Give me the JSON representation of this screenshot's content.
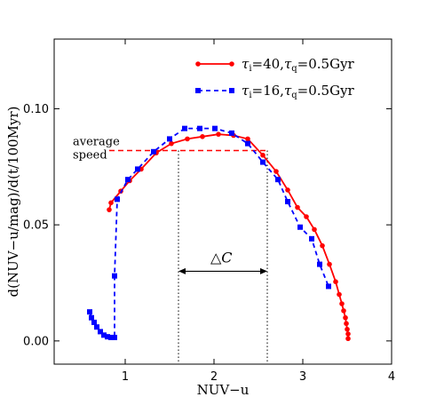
{
  "chart_data": {
    "type": "line",
    "xlabel": "NUV−u",
    "ylabel": "d(NUV−u/mag)/d(t/100Myr)",
    "xlim": [
      0.2,
      4.0
    ],
    "ylim": [
      -0.01,
      0.13
    ],
    "x_ticks": [
      {
        "value": 1,
        "label": "1"
      },
      {
        "value": 2,
        "label": "2"
      },
      {
        "value": 3,
        "label": "3"
      },
      {
        "value": 4,
        "label": "4"
      }
    ],
    "y_ticks": [
      {
        "value": 0.0,
        "label": "0.00"
      },
      {
        "value": 0.05,
        "label": "0.05"
      },
      {
        "value": 0.1,
        "label": "0.10"
      }
    ],
    "legend_position": "top-right",
    "series": [
      {
        "name": "τi=40,τq=0.5Gyr",
        "label_parts": {
          "tau_i": "40",
          "tau_q": "0.5Gyr"
        },
        "color": "#ff0000",
        "line_style": "solid",
        "marker": "circle",
        "points": [
          [
            0.82,
            0.0565
          ],
          [
            0.84,
            0.0595
          ],
          [
            0.95,
            0.0645
          ],
          [
            1.05,
            0.069
          ],
          [
            1.18,
            0.074
          ],
          [
            1.35,
            0.081
          ],
          [
            1.52,
            0.085
          ],
          [
            1.7,
            0.087
          ],
          [
            1.87,
            0.088
          ],
          [
            2.05,
            0.089
          ],
          [
            2.22,
            0.0885
          ],
          [
            2.38,
            0.087
          ],
          [
            2.55,
            0.08
          ],
          [
            2.7,
            0.073
          ],
          [
            2.83,
            0.065
          ],
          [
            2.94,
            0.0575
          ],
          [
            3.04,
            0.0535
          ],
          [
            3.13,
            0.048
          ],
          [
            3.22,
            0.041
          ],
          [
            3.3,
            0.033
          ],
          [
            3.37,
            0.0255
          ],
          [
            3.41,
            0.02
          ],
          [
            3.44,
            0.016
          ],
          [
            3.46,
            0.013
          ],
          [
            3.48,
            0.01
          ],
          [
            3.49,
            0.0075
          ],
          [
            3.5,
            0.005
          ],
          [
            3.51,
            0.003
          ],
          [
            3.51,
            0.001
          ]
        ]
      },
      {
        "name": "τi=16,τq=0.5Gyr",
        "label_parts": {
          "tau_i": "16",
          "tau_q": "0.5Gyr"
        },
        "color": "#0000ff",
        "line_style": "dashed",
        "marker": "square",
        "points": [
          [
            0.6,
            0.0125
          ],
          [
            0.62,
            0.01
          ],
          [
            0.65,
            0.008
          ],
          [
            0.68,
            0.006
          ],
          [
            0.72,
            0.004
          ],
          [
            0.76,
            0.0025
          ],
          [
            0.8,
            0.0018
          ],
          [
            0.84,
            0.0015
          ],
          [
            0.88,
            0.0015
          ],
          [
            0.88,
            0.028
          ],
          [
            0.91,
            0.061
          ],
          [
            1.03,
            0.0695
          ],
          [
            1.14,
            0.074
          ],
          [
            1.32,
            0.0815
          ],
          [
            1.5,
            0.087
          ],
          [
            1.67,
            0.0915
          ],
          [
            1.84,
            0.0915
          ],
          [
            2.01,
            0.0915
          ],
          [
            2.2,
            0.0895
          ],
          [
            2.38,
            0.085
          ],
          [
            2.55,
            0.077
          ],
          [
            2.72,
            0.0695
          ],
          [
            2.83,
            0.06
          ],
          [
            2.97,
            0.049
          ],
          [
            3.1,
            0.044
          ],
          [
            3.19,
            0.033
          ],
          [
            3.29,
            0.0235
          ]
        ]
      }
    ],
    "average_speed_line": {
      "value": 0.082,
      "x_range": [
        0.82,
        2.62
      ],
      "color": "#ff0000",
      "label_line1": "average",
      "label_line2": "speed"
    },
    "delta_c": {
      "x_left": 1.6,
      "x_right": 2.6,
      "arrow_y": 0.03,
      "label": "△C"
    }
  }
}
